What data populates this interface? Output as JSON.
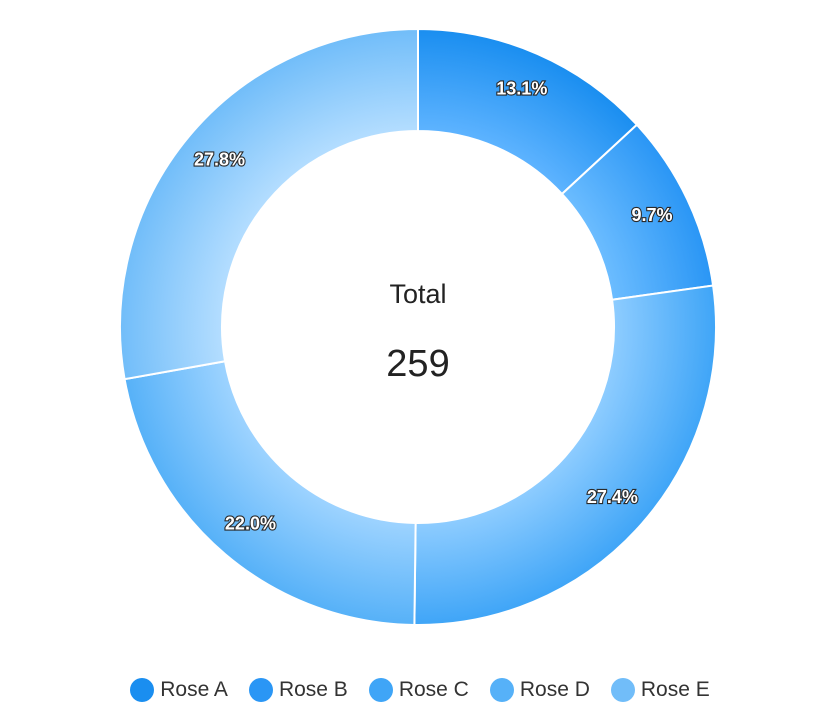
{
  "chart_data": {
    "type": "donut",
    "center": {
      "title": "Total",
      "value": "259"
    },
    "slices": [
      {
        "name": "Rose A",
        "value": 34,
        "label": "13.1%",
        "color": "#1a8ef0",
        "light": "#5db3ff"
      },
      {
        "name": "Rose B",
        "value": 25,
        "label": "9.7%",
        "color": "#2a96f5",
        "light": "#6bbcff"
      },
      {
        "name": "Rose C",
        "value": 71,
        "label": "27.4%",
        "color": "#3fa5f7",
        "light": "#8dccff"
      },
      {
        "name": "Rose D",
        "value": 57,
        "label": "22.0%",
        "color": "#56b1f8",
        "light": "#9dd3ff"
      },
      {
        "name": "Rose E",
        "value": 72,
        "label": "27.8%",
        "color": "#71bdf9",
        "light": "#b3ddff"
      }
    ],
    "legend": {
      "position": "bottom",
      "items": [
        "Rose A",
        "Rose B",
        "Rose C",
        "Rose D",
        "Rose E"
      ]
    }
  }
}
